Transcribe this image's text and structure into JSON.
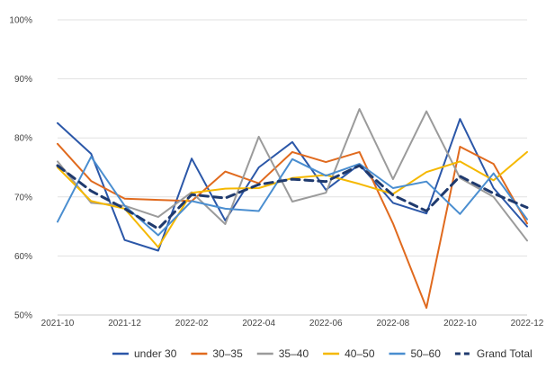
{
  "chart_data": {
    "type": "line",
    "title": "",
    "xlabel": "",
    "ylabel": "",
    "ylim": [
      50,
      100
    ],
    "y_ticks": [
      "50%",
      "60%",
      "70%",
      "80%",
      "90%",
      "100%"
    ],
    "y_tick_values": [
      50,
      60,
      70,
      80,
      90,
      100
    ],
    "x": [
      "2021-10",
      "2021-11",
      "2021-12",
      "2022-01",
      "2022-02",
      "2022-03",
      "2022-04",
      "2022-05",
      "2022-06",
      "2022-07",
      "2022-08",
      "2022-09",
      "2022-10",
      "2022-11",
      "2022-12"
    ],
    "x_tick_labels": [
      "2021-10",
      "2021-12",
      "2022-02",
      "2022-04",
      "2022-06",
      "2022-08",
      "2022-10",
      "2022-12"
    ],
    "x_tick_indices": [
      0,
      2,
      4,
      6,
      8,
      10,
      12,
      14
    ],
    "grid": "horizontal",
    "legend_position": "bottom",
    "series": [
      {
        "name": "under 30",
        "color": "#2b57a8",
        "dashed": false,
        "values": [
          82.5,
          77.3,
          62.7,
          60.9,
          76.5,
          66.0,
          75.0,
          79.3,
          71.2,
          75.5,
          69.0,
          67.2,
          83.2,
          71.5,
          65.0
        ]
      },
      {
        "name": "30–35",
        "color": "#e06a1e",
        "dashed": false,
        "values": [
          79.0,
          72.7,
          69.7,
          69.5,
          69.3,
          74.3,
          72.3,
          77.6,
          75.9,
          77.6,
          65.5,
          51.2,
          78.5,
          75.6,
          65.5
        ]
      },
      {
        "name": "35–40",
        "color": "#9b9b9b",
        "dashed": false,
        "values": [
          76.0,
          69.0,
          68.5,
          66.6,
          70.8,
          65.4,
          80.2,
          69.2,
          70.7,
          84.9,
          73.0,
          84.5,
          73.2,
          70.0,
          62.6
        ]
      },
      {
        "name": "40–50",
        "color": "#f5b800",
        "dashed": false,
        "values": [
          75.0,
          69.3,
          68.0,
          61.5,
          70.7,
          71.4,
          71.5,
          73.2,
          73.7,
          72.2,
          70.5,
          74.2,
          76.0,
          72.8,
          77.6
        ]
      },
      {
        "name": "50–60",
        "color": "#4a8ed0",
        "dashed": false,
        "values": [
          65.8,
          76.8,
          68.5,
          63.5,
          69.3,
          68.0,
          67.6,
          76.4,
          73.6,
          75.6,
          71.5,
          72.6,
          67.1,
          74.0,
          66.2
        ]
      },
      {
        "name": "Grand Total",
        "color": "#1f3a6e",
        "dashed": true,
        "values": [
          75.3,
          71.0,
          68.0,
          64.6,
          70.4,
          69.8,
          72.1,
          73.0,
          72.6,
          75.3,
          70.3,
          67.6,
          73.5,
          70.6,
          68.2
        ]
      }
    ]
  }
}
